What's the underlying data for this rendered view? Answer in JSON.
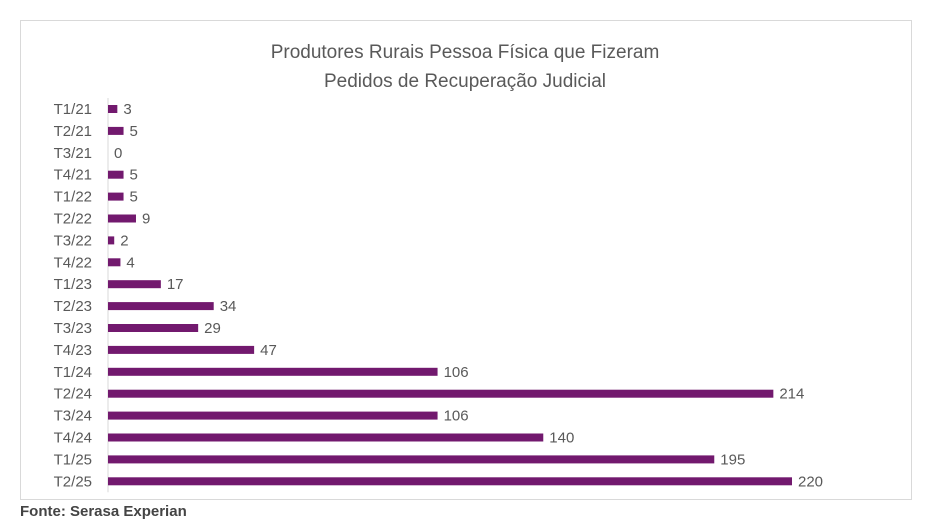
{
  "chart_data": {
    "type": "bar",
    "orientation": "horizontal",
    "title_line1": "Produtores Rurais Pessoa Física que Fizeram",
    "title_line2": "Pedidos de Recuperação Judicial",
    "categories": [
      "T1/21",
      "T2/21",
      "T3/21",
      "T4/21",
      "T1/22",
      "T2/22",
      "T3/22",
      "T4/22",
      "T1/23",
      "T2/23",
      "T3/23",
      "T4/23",
      "T1/24",
      "T2/24",
      "T3/24",
      "T4/24",
      "T1/25",
      "T2/25"
    ],
    "values": [
      3,
      5,
      0,
      5,
      5,
      9,
      2,
      4,
      17,
      34,
      29,
      47,
      106,
      214,
      106,
      140,
      195,
      220
    ],
    "bar_color": "#72196e",
    "data_labels": true,
    "grid": false,
    "legend": "none"
  },
  "source": "Fonte: Serasa Experian"
}
